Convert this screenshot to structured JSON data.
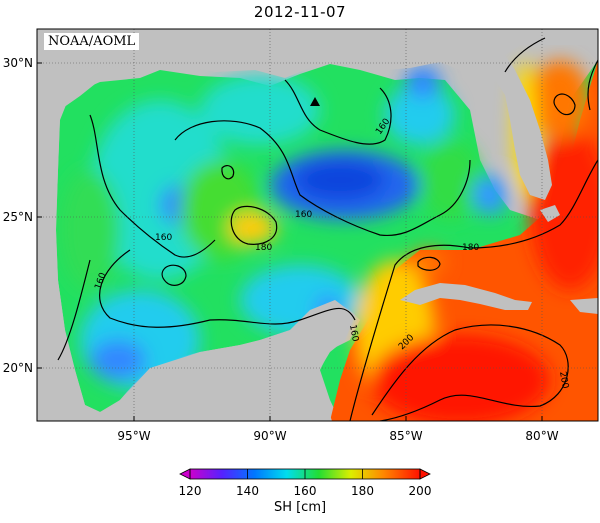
{
  "title": "2012-11-07",
  "credit": "NOAA/AOML",
  "map": {
    "x_ticks": [
      "95°W",
      "90°W",
      "85°W",
      "80°W"
    ],
    "y_ticks": [
      "30°N",
      "25°N",
      "20°N"
    ],
    "contour_labels": [
      "160",
      "160",
      "160",
      "160",
      "180",
      "180",
      "200",
      "200",
      "160"
    ],
    "marker": "triangle-marker"
  },
  "colorbar": {
    "title": "SH [cm]",
    "ticks": [
      "120",
      "140",
      "160",
      "180",
      "200"
    ],
    "range": [
      120,
      200
    ],
    "colors": [
      "#cc00cc",
      "#3344ff",
      "#00ccff",
      "#33dd44",
      "#ffee00",
      "#ff8800",
      "#ff1100"
    ]
  }
}
